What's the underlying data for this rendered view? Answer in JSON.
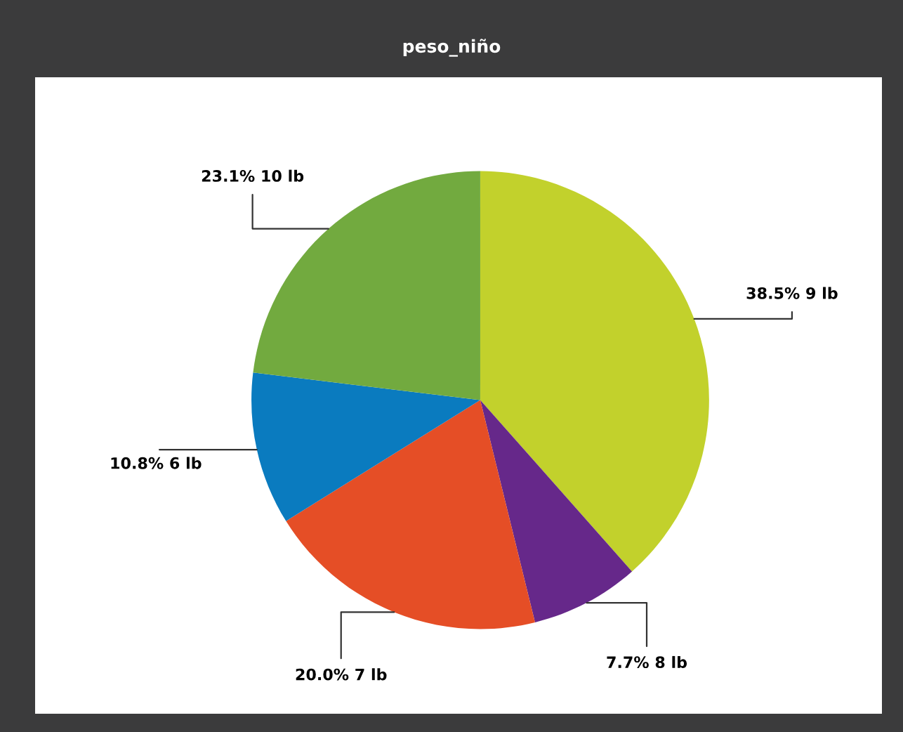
{
  "chart_data": {
    "type": "pie",
    "title": "peso_niño",
    "categories": [
      "9 lb",
      "8 lb",
      "7 lb",
      "6 lb",
      "10 lb"
    ],
    "values": [
      38.5,
      7.7,
      20.0,
      10.8,
      23.1
    ],
    "value_labels": [
      "38.5%",
      "7.7%",
      "20.0%",
      "10.8%",
      "23.1%"
    ],
    "colors": [
      "#c2d12c",
      "#66288a",
      "#e54e26",
      "#0a7bbf",
      "#72aa3f"
    ],
    "legend": false
  }
}
